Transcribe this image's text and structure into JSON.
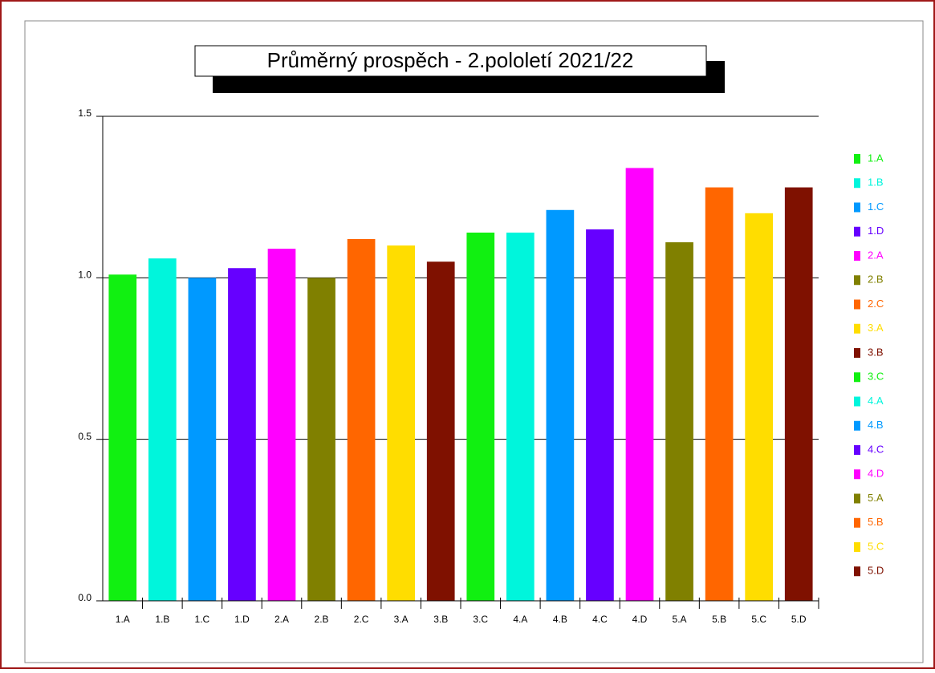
{
  "chart_data": {
    "type": "bar",
    "title": "Průměrný prospěch - 2.pololetí 2021/22",
    "categories": [
      "1.A",
      "1.B",
      "1.C",
      "1.D",
      "2.A",
      "2.B",
      "2.C",
      "3.A",
      "3.B",
      "3.C",
      "4.A",
      "4.B",
      "4.C",
      "4.D",
      "5.A",
      "5.B",
      "5.C",
      "5.D"
    ],
    "values": [
      1.01,
      1.06,
      1.0,
      1.03,
      1.09,
      1.0,
      1.12,
      1.1,
      1.05,
      1.14,
      1.14,
      1.21,
      1.15,
      1.34,
      1.11,
      1.28,
      1.2,
      1.28
    ],
    "colors": [
      "#11f011",
      "#00f5dc",
      "#0099ff",
      "#6600ff",
      "#ff00ff",
      "#808000",
      "#ff6600",
      "#ffdd00",
      "#7f1100",
      "#11f011",
      "#00f5dc",
      "#0099ff",
      "#6600ff",
      "#ff00ff",
      "#808000",
      "#ff6600",
      "#ffdd00",
      "#7f1100"
    ],
    "ylim": [
      0,
      1.5
    ],
    "yticks": [
      {
        "value": 0,
        "label": "0.0"
      },
      0.5,
      {
        "value": 1,
        "label": "1.0"
      },
      1.5
    ],
    "grid": true,
    "legend": "right"
  }
}
